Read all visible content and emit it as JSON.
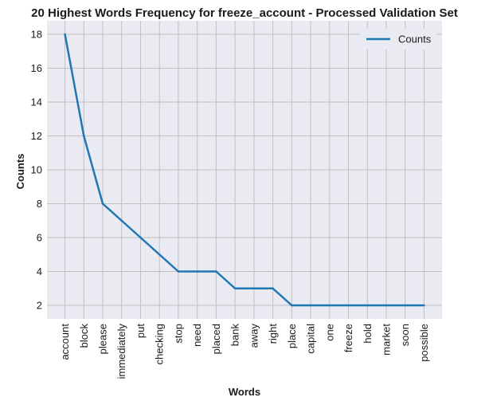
{
  "chart_data": {
    "type": "line",
    "title": "20 Highest Words Frequency for freeze_account - Processed Validation Set",
    "xlabel": "Words",
    "ylabel": "Counts",
    "categories": [
      "account",
      "block",
      "please",
      "immediately",
      "put",
      "checking",
      "stop",
      "need",
      "placed",
      "bank",
      "away",
      "right",
      "place",
      "capital",
      "one",
      "freeze",
      "hold",
      "market",
      "soon",
      "possible"
    ],
    "series": [
      {
        "name": "Counts",
        "values": [
          18,
          12,
          8,
          7,
          6,
          5,
          4,
          4,
          4,
          3,
          3,
          3,
          2,
          2,
          2,
          2,
          2,
          2,
          2,
          2
        ],
        "color": "#1f77b4"
      }
    ],
    "ylim": [
      1.2,
      18.8
    ],
    "yticks": [
      2,
      4,
      6,
      8,
      10,
      12,
      14,
      16,
      18
    ],
    "grid": true,
    "legend_position": "top-right",
    "background": "#eaeaf2",
    "grid_color": "#c0c0c0"
  }
}
